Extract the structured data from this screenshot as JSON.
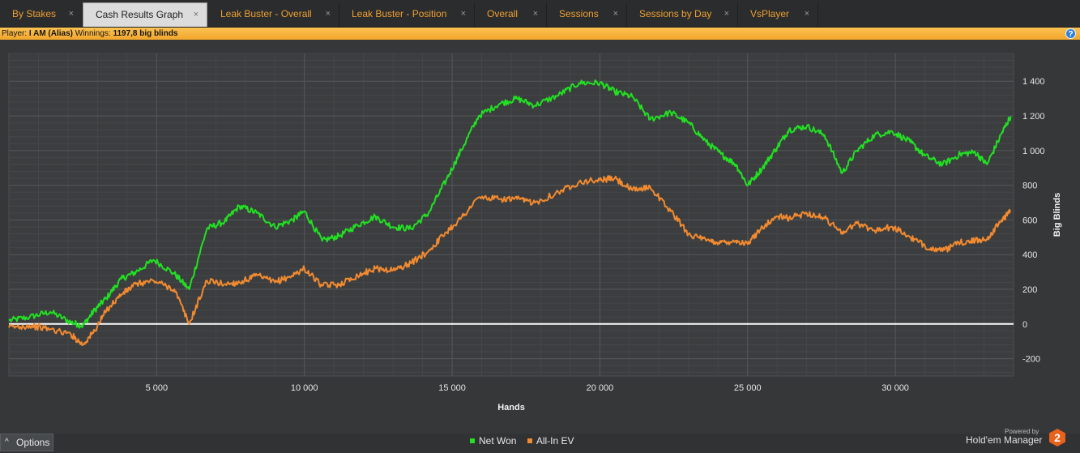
{
  "tabs": [
    {
      "label": "By Stakes",
      "active": false
    },
    {
      "label": "Cash Results Graph",
      "active": true
    },
    {
      "label": "Leak Buster - Overall",
      "active": false
    },
    {
      "label": "Leak Buster - Position",
      "active": false
    },
    {
      "label": "Overall",
      "active": false
    },
    {
      "label": "Sessions",
      "active": false
    },
    {
      "label": "Sessions by Day",
      "active": false
    },
    {
      "label": "VsPlayer",
      "active": false
    }
  ],
  "close_glyph": "×",
  "info": {
    "player_label": "Player:",
    "player_value": "I AM (Alias)",
    "winnings_label": "Winnings:",
    "winnings_value": "1197,8 big blinds",
    "help_glyph": "?"
  },
  "chart_data": {
    "type": "line",
    "xlabel": "Hands",
    "ylabel": "Big Blinds",
    "xlim": [
      0,
      34000
    ],
    "ylim": [
      -300,
      1560
    ],
    "x_ticks": [
      5000,
      10000,
      15000,
      20000,
      25000,
      30000
    ],
    "x_tick_labels": [
      "5 000",
      "10 000",
      "15 000",
      "20 000",
      "25 000",
      "30 000"
    ],
    "y_ticks": [
      -200,
      0,
      200,
      400,
      600,
      800,
      1000,
      1200,
      1400
    ],
    "y_tick_labels": [
      "-200",
      "0",
      "200",
      "400",
      "600",
      "800",
      "1 000",
      "1 200",
      "1 400"
    ],
    "grid": true,
    "zero_line": true,
    "legend_position": "bottom-center",
    "x": [
      0,
      700,
      1400,
      2100,
      2500,
      2900,
      3300,
      3800,
      4300,
      4900,
      5600,
      6100,
      6700,
      7300,
      7800,
      8400,
      9000,
      9600,
      10000,
      10600,
      11200,
      11800,
      12400,
      13000,
      13600,
      14200,
      14800,
      15300,
      15900,
      16600,
      17200,
      17800,
      18600,
      19300,
      20000,
      20500,
      21100,
      21700,
      22400,
      23000,
      23600,
      24100,
      24600,
      25000,
      25500,
      26000,
      26400,
      27000,
      27600,
      28200,
      28700,
      29300,
      29900,
      30500,
      31000,
      31600,
      32200,
      32700,
      33100,
      33600,
      33900
    ],
    "series": [
      {
        "name": "Net Won",
        "color": "#22e022",
        "values": [
          20,
          40,
          70,
          10,
          -10,
          80,
          150,
          260,
          300,
          370,
          290,
          200,
          550,
          590,
          680,
          640,
          560,
          600,
          650,
          480,
          510,
          570,
          620,
          560,
          550,
          640,
          830,
          1000,
          1200,
          1270,
          1300,
          1260,
          1320,
          1390,
          1390,
          1340,
          1310,
          1180,
          1220,
          1160,
          1050,
          980,
          920,
          800,
          900,
          1020,
          1120,
          1140,
          1090,
          870,
          1000,
          1090,
          1110,
          1050,
          970,
          920,
          980,
          990,
          920,
          1100,
          1197.8
        ]
      },
      {
        "name": "All-In EV",
        "color": "#f28a30",
        "values": [
          -20,
          -10,
          -30,
          -60,
          -120,
          -40,
          80,
          170,
          230,
          250,
          200,
          0,
          250,
          230,
          240,
          280,
          240,
          280,
          320,
          220,
          230,
          280,
          320,
          310,
          350,
          420,
          530,
          610,
          730,
          720,
          720,
          700,
          760,
          820,
          830,
          840,
          770,
          790,
          650,
          520,
          480,
          470,
          480,
          460,
          560,
          620,
          610,
          640,
          610,
          530,
          580,
          540,
          560,
          500,
          450,
          420,
          470,
          480,
          490,
          600,
          650
        ]
      }
    ]
  },
  "legend": [
    {
      "label": "Net Won",
      "color": "#22e022"
    },
    {
      "label": "All-In EV",
      "color": "#f28a30"
    }
  ],
  "options_label": "Options",
  "options_glyph": "^",
  "branding": {
    "powered_by": "Powered by",
    "product": "Hold'em Manager",
    "logo_number": "2",
    "logo_color": "#e8621c"
  }
}
